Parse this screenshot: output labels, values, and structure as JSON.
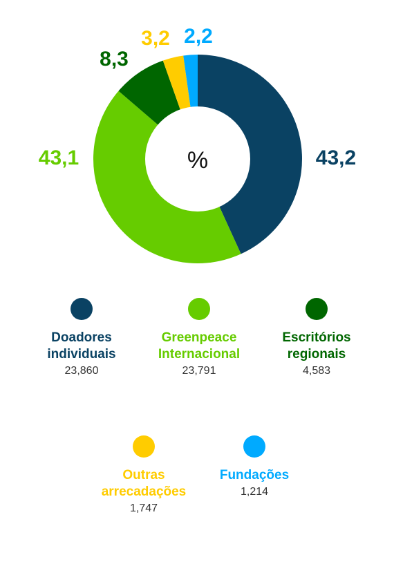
{
  "chart_data": {
    "type": "pie",
    "center_label": "%",
    "slices": [
      {
        "label": "43,2",
        "value": 43.2,
        "color": "#0a4263",
        "name": "Doadores\nindividuais",
        "amount": "23,860"
      },
      {
        "label": "43,1",
        "value": 43.1,
        "color": "#66cc00",
        "name": "Greenpeace\nInternacional",
        "amount": "23,791"
      },
      {
        "label": "8,3",
        "value": 8.3,
        "color": "#006600",
        "name": "Escritórios\nregionais",
        "amount": "4,583"
      },
      {
        "label": "3,2",
        "value": 3.2,
        "color": "#ffcc00",
        "name": "Outras\narrecadações",
        "amount": "1,747"
      },
      {
        "label": "2,2",
        "value": 2.2,
        "color": "#00aaff",
        "name": "Fundações",
        "amount": "1,214"
      }
    ]
  }
}
